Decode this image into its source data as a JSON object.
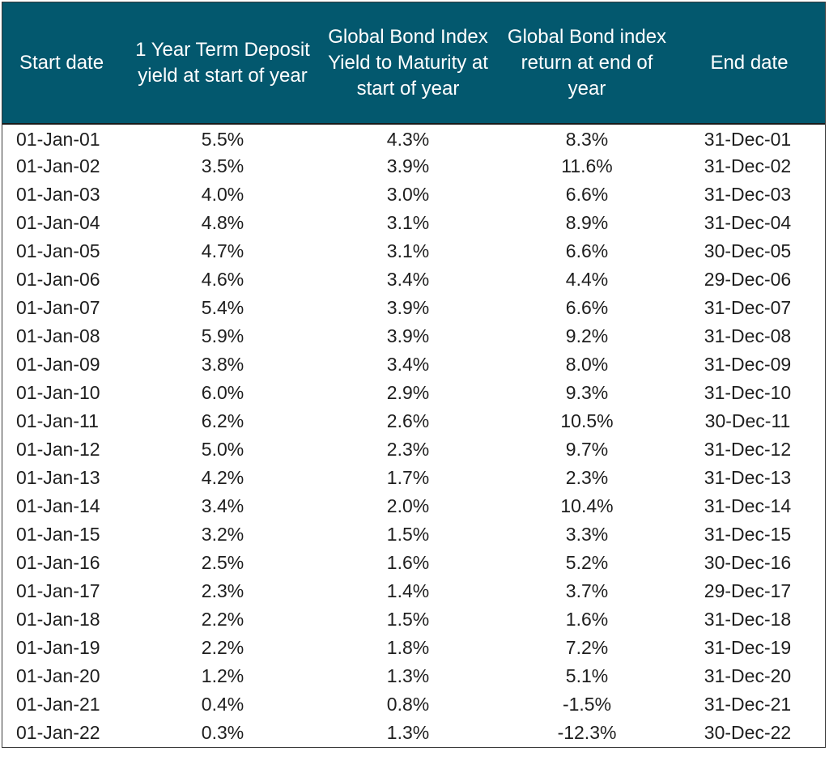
{
  "table": {
    "headers": [
      "Start date",
      "1 Year Term Deposit yield at start of year",
      "Global Bond Index Yield to Maturity at start of year",
      "Global Bond index return at end of year",
      "End date"
    ],
    "rows": [
      [
        "01-Jan-01",
        "5.5%",
        "4.3%",
        "8.3%",
        "31-Dec-01"
      ],
      [
        "01-Jan-02",
        "3.5%",
        "3.9%",
        "11.6%",
        "31-Dec-02"
      ],
      [
        "01-Jan-03",
        "4.0%",
        "3.0%",
        "6.6%",
        "31-Dec-03"
      ],
      [
        "01-Jan-04",
        "4.8%",
        "3.1%",
        "8.9%",
        "31-Dec-04"
      ],
      [
        "01-Jan-05",
        "4.7%",
        "3.1%",
        "6.6%",
        "30-Dec-05"
      ],
      [
        "01-Jan-06",
        "4.6%",
        "3.4%",
        "4.4%",
        "29-Dec-06"
      ],
      [
        "01-Jan-07",
        "5.4%",
        "3.9%",
        "6.6%",
        "31-Dec-07"
      ],
      [
        "01-Jan-08",
        "5.9%",
        "3.9%",
        "9.2%",
        "31-Dec-08"
      ],
      [
        "01-Jan-09",
        "3.8%",
        "3.4%",
        "8.0%",
        "31-Dec-09"
      ],
      [
        "01-Jan-10",
        "6.0%",
        "2.9%",
        "9.3%",
        "31-Dec-10"
      ],
      [
        "01-Jan-11",
        "6.2%",
        "2.6%",
        "10.5%",
        "30-Dec-11"
      ],
      [
        "01-Jan-12",
        "5.0%",
        "2.3%",
        "9.7%",
        "31-Dec-12"
      ],
      [
        "01-Jan-13",
        "4.2%",
        "1.7%",
        "2.3%",
        "31-Dec-13"
      ],
      [
        "01-Jan-14",
        "3.4%",
        "2.0%",
        "10.4%",
        "31-Dec-14"
      ],
      [
        "01-Jan-15",
        "3.2%",
        "1.5%",
        "3.3%",
        "31-Dec-15"
      ],
      [
        "01-Jan-16",
        "2.5%",
        "1.6%",
        "5.2%",
        "30-Dec-16"
      ],
      [
        "01-Jan-17",
        "2.3%",
        "1.4%",
        "3.7%",
        "29-Dec-17"
      ],
      [
        "01-Jan-18",
        "2.2%",
        "1.5%",
        "1.6%",
        "31-Dec-18"
      ],
      [
        "01-Jan-19",
        "2.2%",
        "1.8%",
        "7.2%",
        "31-Dec-19"
      ],
      [
        "01-Jan-20",
        "1.2%",
        "1.3%",
        "5.1%",
        "31-Dec-20"
      ],
      [
        "01-Jan-21",
        "0.4%",
        "0.8%",
        "-1.5%",
        "31-Dec-21"
      ],
      [
        "01-Jan-22",
        "0.3%",
        "1.3%",
        "-12.3%",
        "30-Dec-22"
      ]
    ]
  },
  "colors": {
    "header_background": "#03586e",
    "header_text": "#ffffff",
    "body_text": "#1e1e1e",
    "border": "#3a3a3a"
  }
}
